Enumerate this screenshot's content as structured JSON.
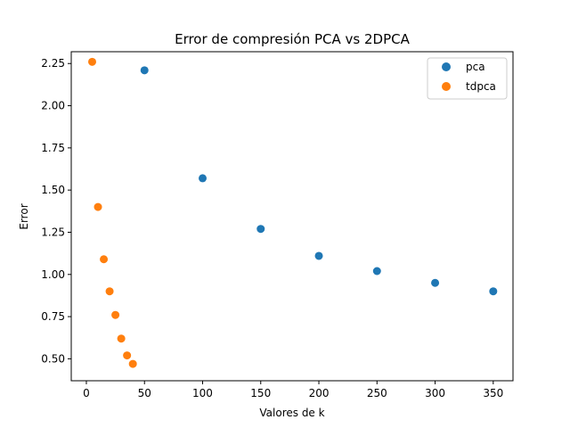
{
  "chart_data": {
    "type": "scatter",
    "title": "Error de compresión PCA vs 2DPCA",
    "xlabel": "Valores de k",
    "ylabel": "Error",
    "xlim": [
      -13,
      367
    ],
    "ylim": [
      0.37,
      2.32
    ],
    "x_ticks": [
      0,
      50,
      100,
      150,
      200,
      250,
      300,
      350
    ],
    "y_ticks": [
      0.5,
      0.75,
      1.0,
      1.25,
      1.5,
      1.75,
      2.0,
      2.25
    ],
    "grid": false,
    "legend": {
      "position": "top-right"
    },
    "series": [
      {
        "name": "pca",
        "color": "#1f77b4",
        "x": [
          50,
          100,
          150,
          200,
          250,
          300,
          350
        ],
        "y": [
          2.21,
          1.57,
          1.27,
          1.11,
          1.02,
          0.95,
          0.9
        ]
      },
      {
        "name": "tdpca",
        "color": "#ff7f0e",
        "x": [
          5,
          10,
          15,
          20,
          25,
          30,
          35,
          40
        ],
        "y": [
          2.26,
          1.4,
          1.09,
          0.9,
          0.76,
          0.62,
          0.52,
          0.47
        ]
      }
    ]
  }
}
